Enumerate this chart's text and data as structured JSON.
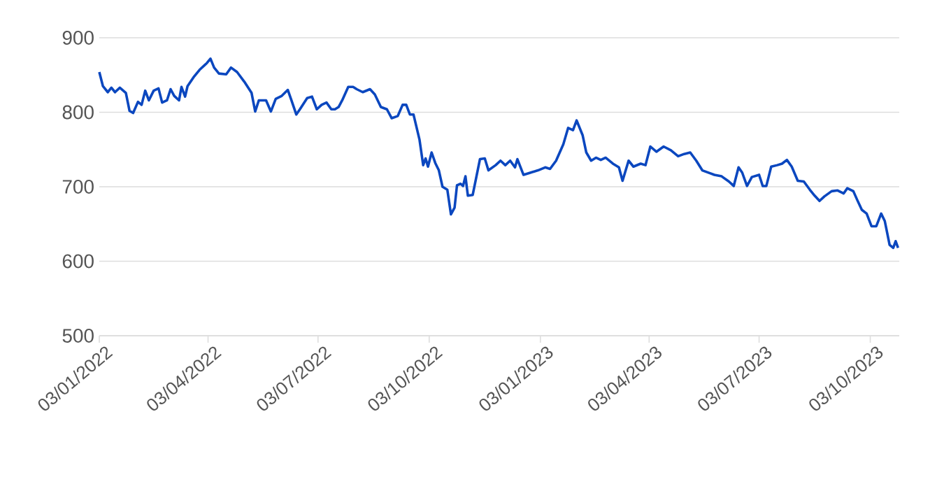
{
  "chart_data": {
    "type": "line",
    "color": "#0b47bf",
    "grid": "y",
    "x": [
      "2022-01-03",
      "2022-01-06",
      "2022-01-10",
      "2022-01-13",
      "2022-01-16",
      "2022-01-20",
      "2022-01-25",
      "2022-01-28",
      "2022-01-31",
      "2022-02-04",
      "2022-02-07",
      "2022-02-10",
      "2022-02-13",
      "2022-02-17",
      "2022-02-21",
      "2022-02-24",
      "2022-02-28",
      "2022-03-03",
      "2022-03-06",
      "2022-03-10",
      "2022-03-12",
      "2022-03-15",
      "2022-03-17",
      "2022-03-22",
      "2022-03-27",
      "2022-03-31",
      "2022-04-02",
      "2022-04-05",
      "2022-04-08",
      "2022-04-12",
      "2022-04-18",
      "2022-04-22",
      "2022-04-27",
      "2022-05-03",
      "2022-05-09",
      "2022-05-12",
      "2022-05-15",
      "2022-05-21",
      "2022-05-25",
      "2022-05-29",
      "2022-06-03",
      "2022-06-08",
      "2022-06-11",
      "2022-06-15",
      "2022-06-18",
      "2022-06-24",
      "2022-06-28",
      "2022-07-02",
      "2022-07-06",
      "2022-07-10",
      "2022-07-14",
      "2022-07-17",
      "2022-07-20",
      "2022-07-23",
      "2022-07-28",
      "2022-08-01",
      "2022-08-04",
      "2022-08-09",
      "2022-08-15",
      "2022-08-19",
      "2022-08-24",
      "2022-08-29",
      "2022-09-02",
      "2022-09-07",
      "2022-09-11",
      "2022-09-14",
      "2022-09-17",
      "2022-09-20",
      "2022-09-25",
      "2022-09-28",
      "2022-09-30",
      "2022-10-02",
      "2022-10-05",
      "2022-10-08",
      "2022-10-11",
      "2022-10-14",
      "2022-10-18",
      "2022-10-21",
      "2022-10-24",
      "2022-10-26",
      "2022-10-29",
      "2022-10-31",
      "2022-11-02",
      "2022-11-04",
      "2022-11-08",
      "2022-11-11",
      "2022-11-14",
      "2022-11-18",
      "2022-11-21",
      "2022-11-27",
      "2022-12-01",
      "2022-12-05",
      "2022-12-09",
      "2022-12-13",
      "2022-12-15",
      "2022-12-20",
      "2022-12-26",
      "2023-01-01",
      "2023-01-07",
      "2023-01-11",
      "2023-01-16",
      "2023-01-22",
      "2023-01-26",
      "2023-01-30",
      "2023-02-02",
      "2023-02-07",
      "2023-02-10",
      "2023-02-14",
      "2023-02-18",
      "2023-02-22",
      "2023-02-26",
      "2023-03-04",
      "2023-03-09",
      "2023-03-12",
      "2023-03-17",
      "2023-03-21",
      "2023-03-27",
      "2023-03-31",
      "2023-04-04",
      "2023-04-09",
      "2023-04-15",
      "2023-04-21",
      "2023-04-27",
      "2023-05-02",
      "2023-05-07",
      "2023-05-12",
      "2023-05-17",
      "2023-05-22",
      "2023-05-27",
      "2023-06-02",
      "2023-06-08",
      "2023-06-12",
      "2023-06-16",
      "2023-06-19",
      "2023-06-23",
      "2023-06-27",
      "2023-07-03",
      "2023-07-06",
      "2023-07-09",
      "2023-07-13",
      "2023-07-18",
      "2023-07-22",
      "2023-07-26",
      "2023-07-30",
      "2023-08-04",
      "2023-08-09",
      "2023-08-14",
      "2023-08-18",
      "2023-08-22",
      "2023-08-26",
      "2023-09-01",
      "2023-09-06",
      "2023-09-11",
      "2023-09-14",
      "2023-09-19",
      "2023-09-22",
      "2023-09-26",
      "2023-09-30",
      "2023-10-04",
      "2023-10-08",
      "2023-10-12",
      "2023-10-15",
      "2023-10-19",
      "2023-10-22",
      "2023-10-24",
      "2023-10-26"
    ],
    "values": [
      854,
      835,
      827,
      833,
      827,
      833,
      826,
      802,
      799,
      814,
      810,
      829,
      816,
      829,
      832,
      813,
      816,
      831,
      822,
      816,
      834,
      821,
      835,
      847,
      857,
      863,
      866,
      872,
      860,
      852,
      851,
      860,
      854,
      841,
      826,
      801,
      816,
      816,
      801,
      818,
      822,
      830,
      816,
      797,
      804,
      819,
      821,
      804,
      810,
      813,
      804,
      804,
      807,
      816,
      834,
      834,
      831,
      827,
      831,
      824,
      807,
      804,
      792,
      795,
      810,
      810,
      797,
      797,
      763,
      729,
      738,
      727,
      746,
      732,
      722,
      700,
      696,
      663,
      672,
      702,
      704,
      701,
      714,
      688,
      689,
      713,
      737,
      738,
      722,
      729,
      735,
      729,
      735,
      726,
      737,
      716,
      719,
      722,
      726,
      724,
      735,
      757,
      779,
      776,
      789,
      769,
      746,
      735,
      739,
      736,
      739,
      731,
      726,
      708,
      735,
      727,
      731,
      729,
      754,
      747,
      754,
      749,
      741,
      744,
      746,
      735,
      722,
      719,
      716,
      714,
      707,
      701,
      726,
      719,
      701,
      713,
      716,
      701,
      701,
      727,
      729,
      731,
      736,
      727,
      708,
      707,
      696,
      688,
      681,
      687,
      694,
      695,
      691,
      698,
      694,
      683,
      669,
      664,
      647,
      647,
      664,
      654,
      622,
      618,
      627,
      618
    ],
    "xlim": [
      "2022-01-03",
      "2023-10-27"
    ],
    "xticks": [
      {
        "value": "2022-01-03",
        "label": "03/01/2022"
      },
      {
        "value": "2022-04-03",
        "label": "03/04/2022"
      },
      {
        "value": "2022-07-03",
        "label": "03/07/2022"
      },
      {
        "value": "2022-10-03",
        "label": "03/10/2022"
      },
      {
        "value": "2023-01-03",
        "label": "03/01/2023"
      },
      {
        "value": "2023-04-03",
        "label": "03/04/2023"
      },
      {
        "value": "2023-07-03",
        "label": "03/07/2023"
      },
      {
        "value": "2023-10-03",
        "label": "03/10/2023"
      }
    ],
    "ylim": [
      500,
      900
    ],
    "yticks": [
      500,
      600,
      700,
      800,
      900
    ]
  }
}
